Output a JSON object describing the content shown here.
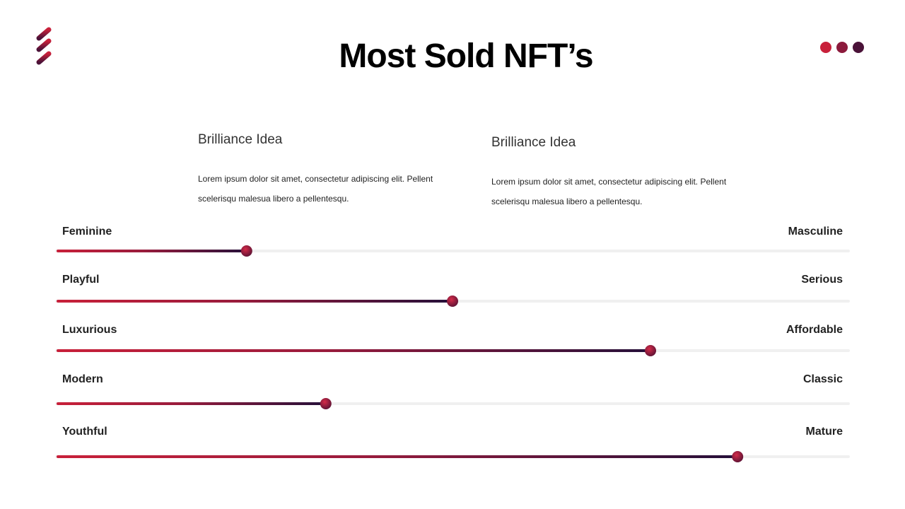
{
  "title": "Most Sold NFT’s",
  "columns": [
    {
      "heading": "Brilliance Idea",
      "text": "Lorem ipsum dolor sit amet, consectetur adipiscing elit. Pellent scelerisqu malesua libero a pellentesqu."
    },
    {
      "heading": "Brilliance Idea",
      "text": "Lorem ipsum dolor sit amet, consectetur adipiscing elit. Pellent scelerisqu malesua libero a pellentesqu."
    }
  ],
  "sliders": {
    "xlim": [
      0,
      100
    ],
    "rows": [
      {
        "left": "Feminine",
        "right": "Masculine",
        "value": 24
      },
      {
        "left": "Playful",
        "right": "Serious",
        "value": 50
      },
      {
        "left": "Luxurious",
        "right": "Affordable",
        "value": 75
      },
      {
        "left": "Modern",
        "right": "Classic",
        "value": 34
      },
      {
        "left": "Youthful",
        "right": "Mature",
        "value": 86
      }
    ]
  }
}
